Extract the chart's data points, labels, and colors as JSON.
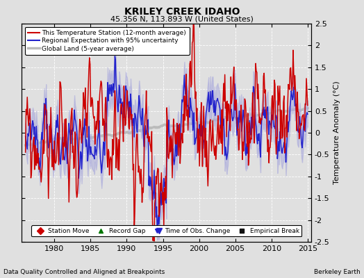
{
  "title": "KRILEY CREEK IDAHO",
  "subtitle": "45.356 N, 113.893 W (United States)",
  "ylabel": "Temperature Anomaly (°C)",
  "xlabel_note": "Data Quality Controlled and Aligned at Breakpoints",
  "source_note": "Berkeley Earth",
  "ylim": [
    -2.5,
    2.5
  ],
  "xlim": [
    1975.5,
    2015.5
  ],
  "yticks": [
    -2.5,
    -2,
    -1.5,
    -1,
    -0.5,
    0,
    0.5,
    1,
    1.5,
    2,
    2.5
  ],
  "xticks": [
    1980,
    1985,
    1990,
    1995,
    2000,
    2005,
    2010,
    2015
  ],
  "red_color": "#cc0000",
  "blue_color": "#2222cc",
  "blue_fill": "#aaaadd",
  "gray_color": "#bbbbbb",
  "bg_color": "#e0e0e0",
  "legend_items": [
    {
      "label": "This Temperature Station (12-month average)",
      "color": "#cc0000",
      "lw": 1.5
    },
    {
      "label": "Regional Expectation with 95% uncertainty",
      "color": "#2222cc",
      "lw": 1.5
    },
    {
      "label": "Global Land (5-year average)",
      "color": "#bbbbbb",
      "lw": 2.5
    }
  ],
  "marker_items": [
    {
      "label": "Station Move",
      "color": "#cc0000",
      "marker": "D"
    },
    {
      "label": "Record Gap",
      "color": "#007700",
      "marker": "^"
    },
    {
      "label": "Time of Obs. Change",
      "color": "#2222cc",
      "marker": "v"
    },
    {
      "label": "Empirical Break",
      "color": "#111111",
      "marker": "s"
    }
  ],
  "time_of_obs_x": 1994.5,
  "time_of_obs_y": -2.25
}
